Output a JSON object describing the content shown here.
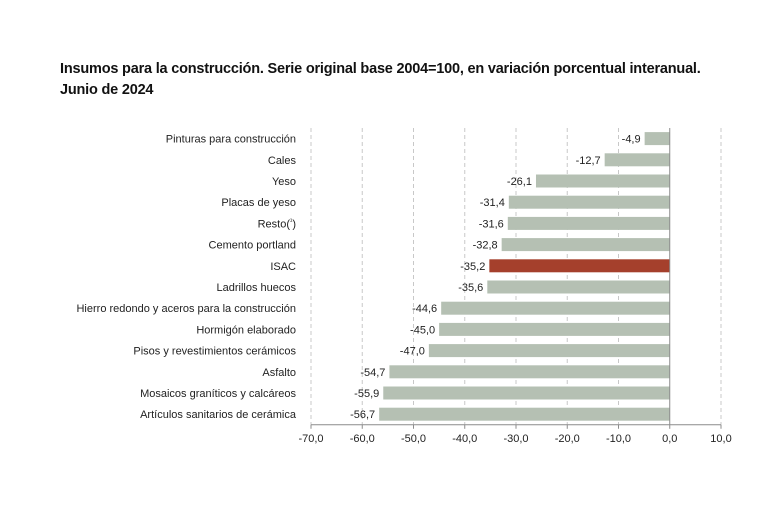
{
  "chart_data": {
    "type": "bar",
    "orientation": "horizontal",
    "title": "Insumos para la construcción. Serie original base 2004=100, en variación porcentual interanual.",
    "subtitle": "Junio de 2024",
    "categories": [
      "Pinturas para construcción",
      "Cales",
      "Yeso",
      "Placas de yeso",
      "Resto(¹)",
      "Cemento portland",
      "ISAC",
      "Ladrillos huecos",
      "Hierro redondo y aceros para la construcción",
      "Hormigón elaborado",
      "Pisos y revestimientos cerámicos",
      "Asfalto",
      "Mosaicos graníticos y calcáreos",
      "Artículos sanitarios de cerámica"
    ],
    "values": [
      -4.9,
      -12.7,
      -26.1,
      -31.4,
      -31.6,
      -32.8,
      -35.2,
      -35.6,
      -44.6,
      -45.0,
      -47.0,
      -54.7,
      -55.9,
      -56.7
    ],
    "value_labels": [
      "-4,9",
      "-12,7",
      "-26,1",
      "-31,4",
      "-31,6",
      "-32,8",
      "-35,2",
      "-35,6",
      "-44,6",
      "-45,0",
      "-47,0",
      "-54,7",
      "-55,9",
      "-56,7"
    ],
    "highlight": "ISAC",
    "xlim": [
      -70,
      10
    ],
    "xticks": [
      "-70,0",
      "-60,0",
      "-50,0",
      "-40,0",
      "-30,0",
      "-20,0",
      "-10,0",
      "0,0",
      "10,0"
    ],
    "grid": "vertical-dashed",
    "colors": {
      "bar": "#b5c0b3",
      "highlight": "#a5402c",
      "grid": "#c8c8c8",
      "axis": "#8c8c8c"
    }
  }
}
